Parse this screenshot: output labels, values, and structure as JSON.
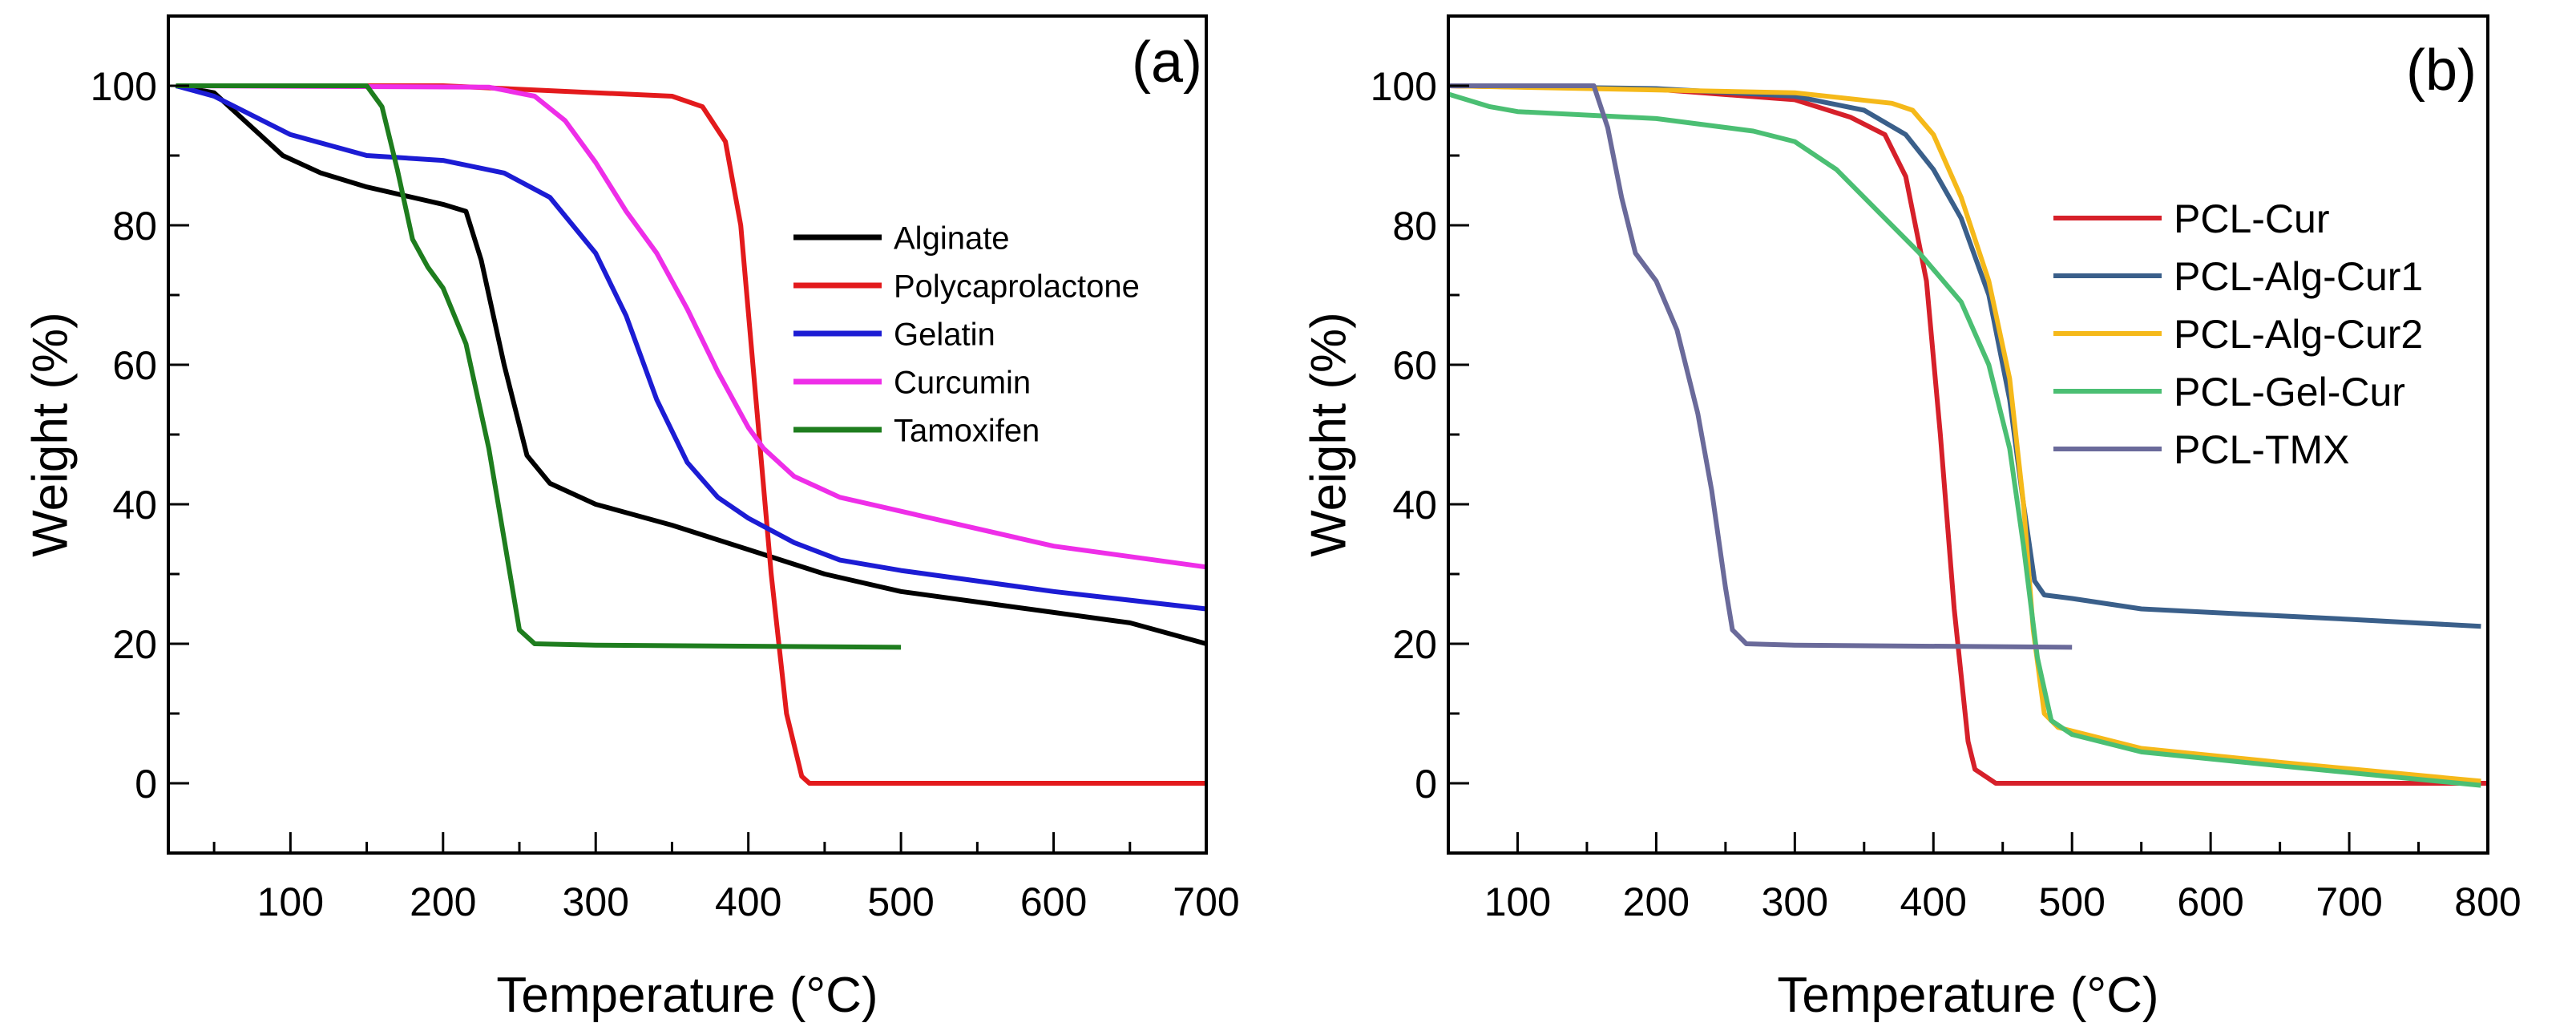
{
  "chart_data": [
    {
      "type": "line",
      "panel_label": "(a)",
      "xlabel": "Temperature (°C)",
      "ylabel": "Weight (%)",
      "xlim": [
        20,
        700
      ],
      "ylim": [
        -10,
        110
      ],
      "xticks": [
        100,
        200,
        300,
        400,
        500,
        600,
        700
      ],
      "yticks": [
        0,
        20,
        40,
        60,
        80,
        100
      ],
      "grid": false,
      "legend_position": "right",
      "series": [
        {
          "name": "Alginate",
          "color": "#000000",
          "points": [
            [
              25,
              100
            ],
            [
              50,
              99
            ],
            [
              75,
              94
            ],
            [
              95,
              90
            ],
            [
              120,
              87.5
            ],
            [
              150,
              85.5
            ],
            [
              200,
              83
            ],
            [
              215,
              82
            ],
            [
              225,
              75
            ],
            [
              240,
              60
            ],
            [
              255,
              47
            ],
            [
              270,
              43
            ],
            [
              300,
              40
            ],
            [
              350,
              37
            ],
            [
              400,
              33.5
            ],
            [
              450,
              30
            ],
            [
              500,
              27.5
            ],
            [
              600,
              24.5
            ],
            [
              650,
              23
            ],
            [
              700,
              20
            ]
          ]
        },
        {
          "name": "Polycaprolactone",
          "color": "#e31a1c",
          "points": [
            [
              25,
              100
            ],
            [
              200,
              100
            ],
            [
              300,
              99
            ],
            [
              350,
              98.5
            ],
            [
              370,
              97
            ],
            [
              385,
              92
            ],
            [
              395,
              80
            ],
            [
              405,
              55
            ],
            [
              415,
              30
            ],
            [
              425,
              10
            ],
            [
              435,
              1
            ],
            [
              440,
              0
            ],
            [
              700,
              0
            ]
          ]
        },
        {
          "name": "Gelatin",
          "color": "#1c1cd4",
          "points": [
            [
              25,
              100
            ],
            [
              50,
              98.5
            ],
            [
              100,
              93
            ],
            [
              150,
              90
            ],
            [
              200,
              89.3
            ],
            [
              240,
              87.5
            ],
            [
              270,
              84
            ],
            [
              300,
              76
            ],
            [
              320,
              67
            ],
            [
              340,
              55
            ],
            [
              360,
              46
            ],
            [
              380,
              41
            ],
            [
              400,
              38
            ],
            [
              430,
              34.5
            ],
            [
              460,
              32
            ],
            [
              500,
              30.5
            ],
            [
              600,
              27.5
            ],
            [
              700,
              25
            ]
          ]
        },
        {
          "name": "Curcumin",
          "color": "#ee2ee8",
          "points": [
            [
              25,
              100
            ],
            [
              230,
              99.8
            ],
            [
              260,
              98.5
            ],
            [
              280,
              95
            ],
            [
              300,
              89
            ],
            [
              320,
              82
            ],
            [
              340,
              76
            ],
            [
              360,
              68
            ],
            [
              380,
              59
            ],
            [
              400,
              51
            ],
            [
              410,
              48
            ],
            [
              430,
              44
            ],
            [
              460,
              41
            ],
            [
              500,
              39
            ],
            [
              600,
              34
            ],
            [
              700,
              31
            ]
          ]
        },
        {
          "name": "Tamoxifen",
          "color": "#1e7d1e",
          "points": [
            [
              25,
              100
            ],
            [
              150,
              100
            ],
            [
              160,
              97
            ],
            [
              170,
              88
            ],
            [
              180,
              78
            ],
            [
              190,
              74
            ],
            [
              200,
              71
            ],
            [
              215,
              63
            ],
            [
              230,
              48
            ],
            [
              240,
              35
            ],
            [
              250,
              22
            ],
            [
              260,
              20
            ],
            [
              300,
              19.8
            ],
            [
              500,
              19.5
            ]
          ]
        }
      ]
    },
    {
      "type": "line",
      "panel_label": "(b)",
      "xlabel": "Temperature (°C)",
      "ylabel": "Weight (%)",
      "xlim": [
        50,
        800
      ],
      "ylim": [
        -10,
        110
      ],
      "xticks": [
        100,
        200,
        300,
        400,
        500,
        600,
        700,
        800
      ],
      "yticks": [
        0,
        20,
        40,
        60,
        80,
        100
      ],
      "grid": false,
      "legend_position": "right",
      "series": [
        {
          "name": "PCL-Cur",
          "color": "#d6202a",
          "points": [
            [
              50,
              100
            ],
            [
              200,
              99.5
            ],
            [
              300,
              98
            ],
            [
              340,
              95.5
            ],
            [
              365,
              93
            ],
            [
              380,
              87
            ],
            [
              395,
              72
            ],
            [
              405,
              50
            ],
            [
              415,
              25
            ],
            [
              425,
              6
            ],
            [
              430,
              2
            ],
            [
              445,
              0
            ],
            [
              800,
              0
            ]
          ]
        },
        {
          "name": "PCL-Alg-Cur1",
          "color": "#3a5f8a",
          "points": [
            [
              50,
              100
            ],
            [
              200,
              99.6
            ],
            [
              300,
              98.5
            ],
            [
              350,
              96.5
            ],
            [
              380,
              93
            ],
            [
              400,
              88
            ],
            [
              420,
              81
            ],
            [
              440,
              70
            ],
            [
              455,
              55
            ],
            [
              465,
              40
            ],
            [
              473,
              29
            ],
            [
              480,
              27
            ],
            [
              500,
              26.5
            ],
            [
              550,
              25
            ],
            [
              600,
              24.5
            ],
            [
              700,
              23.5
            ],
            [
              795,
              22.5
            ]
          ]
        },
        {
          "name": "PCL-Alg-Cur2",
          "color": "#f5b91a",
          "points": [
            [
              50,
              100
            ],
            [
              300,
              99
            ],
            [
              370,
              97.5
            ],
            [
              385,
              96.5
            ],
            [
              400,
              93
            ],
            [
              420,
              84
            ],
            [
              440,
              72
            ],
            [
              455,
              58
            ],
            [
              465,
              40
            ],
            [
              472,
              22
            ],
            [
              480,
              10
            ],
            [
              490,
              8
            ],
            [
              550,
              5
            ],
            [
              650,
              3
            ],
            [
              795,
              0.3
            ]
          ]
        },
        {
          "name": "PCL-Gel-Cur",
          "color": "#4bbf73",
          "points": [
            [
              50,
              98.8
            ],
            [
              80,
              97
            ],
            [
              100,
              96.3
            ],
            [
              200,
              95.3
            ],
            [
              270,
              93.5
            ],
            [
              300,
              92
            ],
            [
              330,
              88
            ],
            [
              360,
              82
            ],
            [
              390,
              76
            ],
            [
              420,
              69
            ],
            [
              440,
              60
            ],
            [
              455,
              48
            ],
            [
              465,
              34
            ],
            [
              475,
              18
            ],
            [
              485,
              9
            ],
            [
              500,
              7
            ],
            [
              550,
              4.5
            ],
            [
              650,
              2.5
            ],
            [
              795,
              -0.3
            ]
          ]
        },
        {
          "name": "PCL-TMX",
          "color": "#6a6a9a",
          "points": [
            [
              50,
              100
            ],
            [
              155,
              100
            ],
            [
              165,
              94
            ],
            [
              175,
              84
            ],
            [
              185,
              76
            ],
            [
              200,
              72
            ],
            [
              215,
              65
            ],
            [
              230,
              53
            ],
            [
              240,
              42
            ],
            [
              250,
              28
            ],
            [
              255,
              22
            ],
            [
              265,
              20
            ],
            [
              300,
              19.8
            ],
            [
              500,
              19.5
            ]
          ]
        }
      ]
    }
  ]
}
